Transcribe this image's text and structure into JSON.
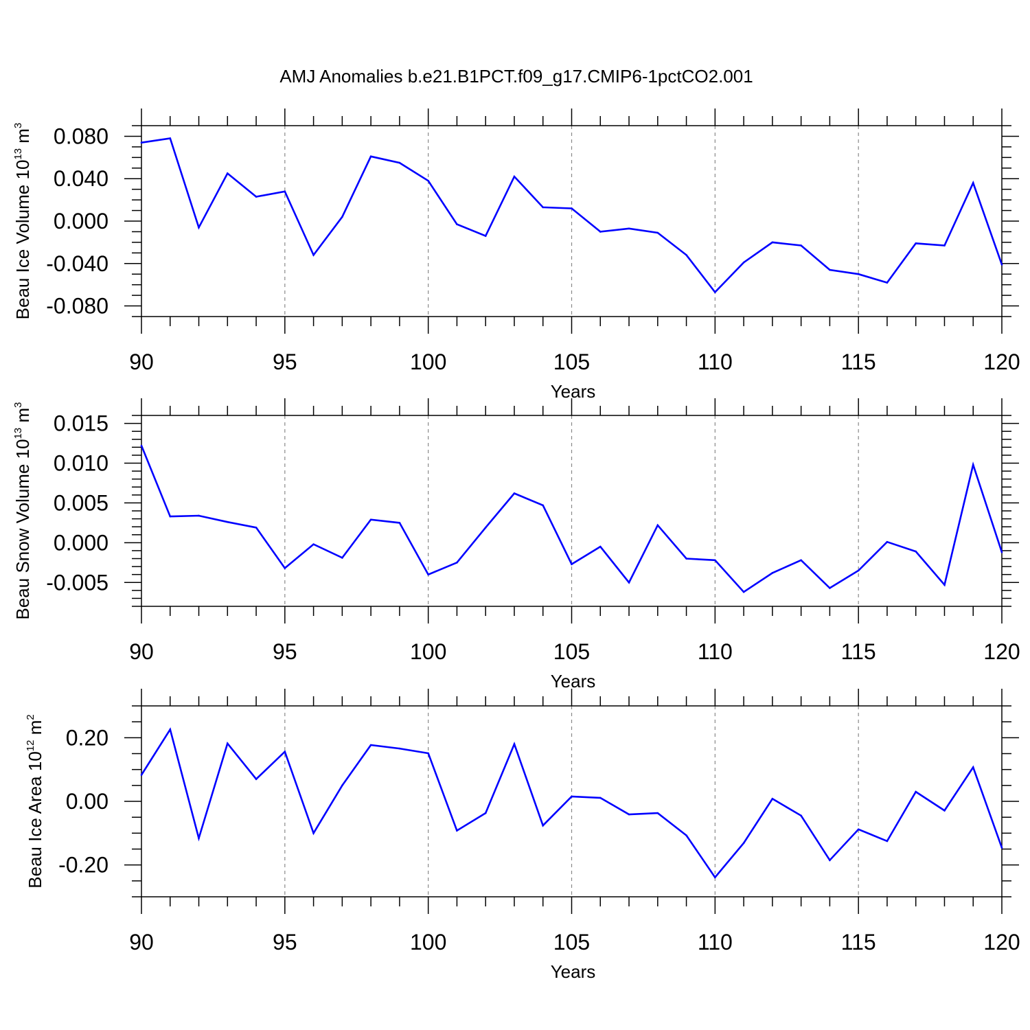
{
  "title": "AMJ Anomalies b.e21.B1PCT.f09_g17.CMIP6-1pctCO2.001",
  "chart_data": [
    {
      "type": "line",
      "ylabel_parts": [
        "Beau Ice Volume 10",
        "13",
        " m",
        "3"
      ],
      "xlabel": "Years",
      "xlim": [
        90,
        120
      ],
      "ylim": [
        -0.09,
        0.09
      ],
      "x_ticks": [
        "90",
        "95",
        "100",
        "105",
        "110",
        "115",
        "120"
      ],
      "x_tick_values": [
        90,
        95,
        100,
        105,
        110,
        115,
        120
      ],
      "y_ticks": [
        "0.080",
        "0.040",
        "0.000",
        "-0.040",
        "-0.080"
      ],
      "y_tick_values": [
        0.08,
        0.04,
        0.0,
        -0.04,
        -0.08
      ],
      "y_minor_step": 0.01,
      "grid_x": [
        95,
        100,
        105,
        110,
        115
      ],
      "line_color": "#0000ff",
      "x": [
        90,
        91,
        92,
        93,
        94,
        95,
        96,
        97,
        98,
        99,
        100,
        101,
        102,
        103,
        104,
        105,
        106,
        107,
        108,
        109,
        110,
        111,
        112,
        113,
        114,
        115,
        116,
        117,
        118,
        119,
        120
      ],
      "y": [
        0.074,
        0.078,
        -0.006,
        0.045,
        0.023,
        0.028,
        -0.032,
        0.004,
        0.061,
        0.055,
        0.038,
        -0.003,
        -0.014,
        0.042,
        0.013,
        0.012,
        -0.01,
        -0.007,
        -0.011,
        -0.032,
        -0.067,
        -0.039,
        -0.02,
        -0.023,
        -0.046,
        -0.05,
        -0.058,
        -0.021,
        -0.023,
        0.036,
        -0.041
      ]
    },
    {
      "type": "line",
      "ylabel_parts": [
        "Beau Snow Volume 10",
        "13",
        " m",
        "3"
      ],
      "xlabel": "Years",
      "xlim": [
        90,
        120
      ],
      "ylim": [
        -0.008,
        0.016
      ],
      "x_ticks": [
        "90",
        "95",
        "100",
        "105",
        "110",
        "115",
        "120"
      ],
      "x_tick_values": [
        90,
        95,
        100,
        105,
        110,
        115,
        120
      ],
      "y_ticks": [
        "0.015",
        "0.010",
        "0.005",
        "0.000",
        "-0.005"
      ],
      "y_tick_values": [
        0.015,
        0.01,
        0.005,
        0.0,
        -0.005
      ],
      "y_minor_step": 0.001,
      "grid_x": [
        95,
        100,
        105,
        110,
        115
      ],
      "line_color": "#0000ff",
      "x": [
        90,
        91,
        92,
        93,
        94,
        95,
        96,
        97,
        98,
        99,
        100,
        101,
        102,
        103,
        104,
        105,
        106,
        107,
        108,
        109,
        110,
        111,
        112,
        113,
        114,
        115,
        116,
        117,
        118,
        119,
        120
      ],
      "y": [
        0.0122,
        0.0033,
        0.0034,
        0.0026,
        0.0019,
        -0.0032,
        -0.0002,
        -0.0019,
        0.0029,
        0.0025,
        -0.004,
        -0.0025,
        0.0019,
        0.0062,
        0.0047,
        -0.0027,
        -0.0005,
        -0.005,
        0.0022,
        -0.002,
        -0.0022,
        -0.0062,
        -0.0038,
        -0.0022,
        -0.0057,
        -0.0035,
        0.0001,
        -0.0011,
        -0.0053,
        0.0098,
        -0.0012
      ]
    },
    {
      "type": "line",
      "ylabel_parts": [
        "Beau Ice Area 10",
        "12",
        " m",
        "2"
      ],
      "xlabel": "Years",
      "xlim": [
        90,
        120
      ],
      "ylim": [
        -0.3,
        0.3
      ],
      "x_ticks": [
        "90",
        "95",
        "100",
        "105",
        "110",
        "115",
        "120"
      ],
      "x_tick_values": [
        90,
        95,
        100,
        105,
        110,
        115,
        120
      ],
      "y_ticks": [
        "0.20",
        "0.00",
        "-0.20"
      ],
      "y_tick_values": [
        0.2,
        0.0,
        -0.2
      ],
      "y_minor_step": 0.05,
      "grid_x": [
        95,
        100,
        105,
        110,
        115
      ],
      "line_color": "#0000ff",
      "x": [
        90,
        91,
        92,
        93,
        94,
        95,
        96,
        97,
        98,
        99,
        100,
        101,
        102,
        103,
        104,
        105,
        106,
        107,
        108,
        109,
        110,
        111,
        112,
        113,
        114,
        115,
        116,
        117,
        118,
        119,
        120
      ],
      "y": [
        0.083,
        0.226,
        -0.116,
        0.182,
        0.07,
        0.156,
        -0.1,
        0.05,
        0.177,
        0.166,
        0.151,
        -0.092,
        -0.037,
        0.18,
        -0.076,
        0.015,
        0.011,
        -0.041,
        -0.037,
        -0.107,
        -0.239,
        -0.131,
        0.008,
        -0.045,
        -0.185,
        -0.088,
        -0.125,
        0.03,
        -0.029,
        0.107,
        -0.146
      ]
    }
  ]
}
